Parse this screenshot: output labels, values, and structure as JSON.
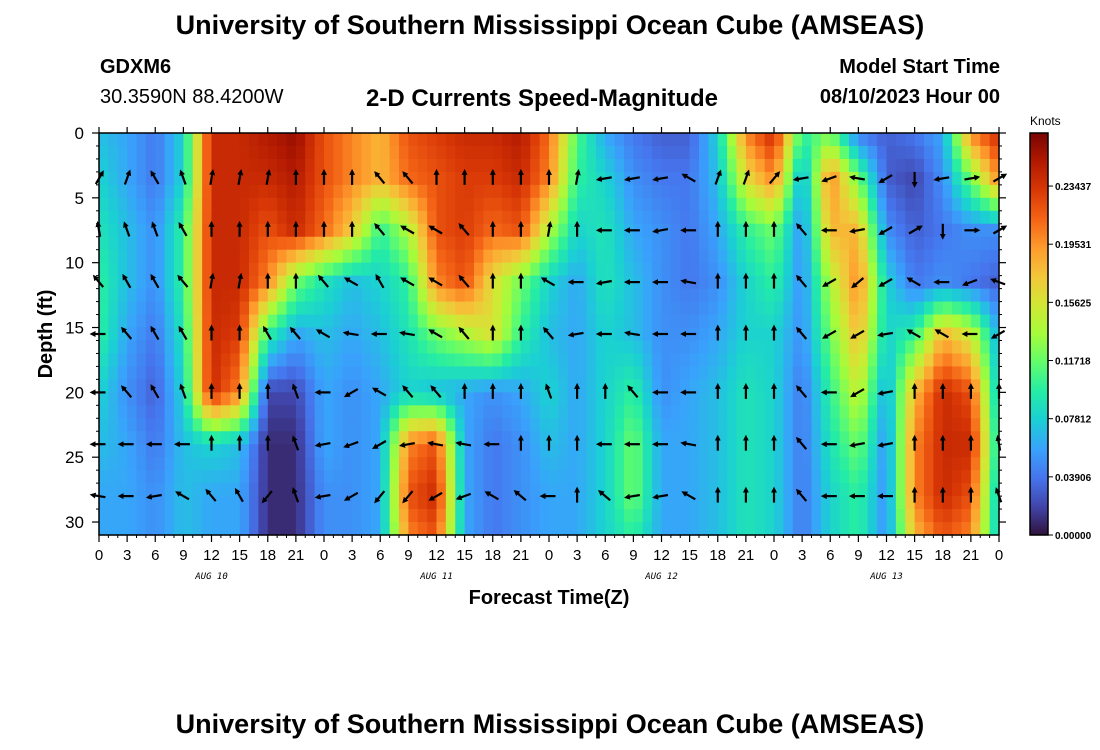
{
  "header": {
    "title": "University of Southern Mississippi Ocean Cube (AMSEAS)",
    "station": "GDXM6",
    "coords": "30.3590N  88.4200W",
    "subtitle": "2-D Currents Speed-Magnitude",
    "start_label": "Model Start Time",
    "start_value": "08/10/2023 Hour 00"
  },
  "footer": {
    "title": "University of Southern Mississippi Ocean Cube (AMSEAS)"
  },
  "chart_data": {
    "type": "heatmap",
    "title": "2-D Currents Speed-Magnitude",
    "xlabel": "Forecast Time(Z)",
    "ylabel": "Depth (ft)",
    "xlim": [
      0,
      96
    ],
    "ylim": [
      31,
      0
    ],
    "x_ticks": [
      0,
      3,
      6,
      9,
      12,
      15,
      18,
      21,
      24,
      27,
      30,
      33,
      36,
      39,
      42,
      45,
      48,
      51,
      54,
      57,
      60,
      63,
      66,
      69,
      72,
      75,
      78,
      81,
      84,
      87,
      90,
      93,
      96
    ],
    "x_tick_labels": [
      "0",
      "3",
      "6",
      "9",
      "12",
      "15",
      "18",
      "21",
      "0",
      "3",
      "6",
      "9",
      "12",
      "15",
      "18",
      "21",
      "0",
      "3",
      "6",
      "9",
      "12",
      "15",
      "18",
      "21",
      "0",
      "3",
      "6",
      "9",
      "12",
      "15",
      "18",
      "21",
      "0"
    ],
    "y_ticks": [
      0,
      5,
      10,
      15,
      20,
      25,
      30
    ],
    "y_tick_labels": [
      "0",
      "5",
      "10",
      "15",
      "20",
      "25",
      "30"
    ],
    "date_labels": [
      {
        "x": 12,
        "label": "AUG 10"
      },
      {
        "x": 36,
        "label": "AUG 11"
      },
      {
        "x": 60,
        "label": "AUG 12"
      },
      {
        "x": 84,
        "label": "AUG 13"
      }
    ],
    "colorbar": {
      "label": "Knots",
      "range": [
        0.0,
        0.27
      ],
      "ticks": [
        0.23437,
        0.19531,
        0.15625,
        0.11718,
        0.07812,
        0.03906,
        0.0
      ],
      "tick_labels": [
        "0.23437",
        "0.19531",
        "0.15625",
        "0.11718",
        "0.07812",
        "0.03906",
        "0.00000"
      ],
      "colors": [
        "#30123b",
        "#4145ab",
        "#4675ed",
        "#39a2fc",
        "#1bcfd4",
        "#24eca6",
        "#61fc6c",
        "#a4fc3b",
        "#d1e834",
        "#f3c63a",
        "#fe9b2d",
        "#f36315",
        "#d93806",
        "#b11901",
        "#7a0402"
      ]
    },
    "speed_grid": {
      "x": [
        0,
        3,
        6,
        9,
        12,
        15,
        18,
        21,
        24,
        27,
        30,
        33,
        36,
        39,
        42,
        45,
        48,
        51,
        54,
        57,
        60,
        63,
        66,
        69,
        72,
        75,
        78,
        81,
        84,
        87,
        90,
        93,
        96
      ],
      "depth": [
        0,
        3.5,
        7.5,
        11.5,
        15.5,
        20,
        24,
        28,
        31
      ],
      "values": [
        [
          0.07,
          0.06,
          0.04,
          0.08,
          0.24,
          0.24,
          0.25,
          0.26,
          0.22,
          0.2,
          0.18,
          0.22,
          0.23,
          0.24,
          0.24,
          0.25,
          0.21,
          0.11,
          0.06,
          0.04,
          0.03,
          0.03,
          0.08,
          0.2,
          0.24,
          0.1,
          0.12,
          0.04,
          0.03,
          0.04,
          0.06,
          0.2,
          0.24
        ],
        [
          0.08,
          0.06,
          0.04,
          0.08,
          0.24,
          0.24,
          0.24,
          0.25,
          0.22,
          0.2,
          0.18,
          0.21,
          0.22,
          0.23,
          0.23,
          0.24,
          0.2,
          0.1,
          0.08,
          0.05,
          0.04,
          0.04,
          0.07,
          0.16,
          0.2,
          0.06,
          0.2,
          0.12,
          0.03,
          0.02,
          0.05,
          0.12,
          0.2
        ],
        [
          0.09,
          0.07,
          0.05,
          0.1,
          0.24,
          0.24,
          0.22,
          0.24,
          0.21,
          0.17,
          0.1,
          0.14,
          0.22,
          0.23,
          0.21,
          0.22,
          0.14,
          0.08,
          0.09,
          0.06,
          0.05,
          0.04,
          0.06,
          0.1,
          0.12,
          0.05,
          0.18,
          0.18,
          0.05,
          0.03,
          0.04,
          0.05,
          0.05
        ],
        [
          0.1,
          0.07,
          0.05,
          0.1,
          0.24,
          0.24,
          0.2,
          0.12,
          0.09,
          0.07,
          0.08,
          0.1,
          0.2,
          0.22,
          0.16,
          0.12,
          0.08,
          0.06,
          0.09,
          0.07,
          0.05,
          0.04,
          0.05,
          0.08,
          0.1,
          0.05,
          0.14,
          0.2,
          0.08,
          0.04,
          0.05,
          0.04,
          0.03
        ],
        [
          0.1,
          0.06,
          0.04,
          0.09,
          0.24,
          0.23,
          0.1,
          0.06,
          0.07,
          0.06,
          0.07,
          0.09,
          0.12,
          0.14,
          0.16,
          0.1,
          0.07,
          0.06,
          0.08,
          0.07,
          0.05,
          0.05,
          0.06,
          0.08,
          0.08,
          0.05,
          0.12,
          0.18,
          0.08,
          0.1,
          0.18,
          0.15,
          0.06
        ],
        [
          0.08,
          0.05,
          0.03,
          0.08,
          0.24,
          0.2,
          0.02,
          0.02,
          0.06,
          0.05,
          0.06,
          0.08,
          0.07,
          0.06,
          0.05,
          0.06,
          0.08,
          0.06,
          0.08,
          0.1,
          0.05,
          0.06,
          0.07,
          0.09,
          0.08,
          0.04,
          0.1,
          0.15,
          0.06,
          0.18,
          0.24,
          0.22,
          0.07
        ],
        [
          0.07,
          0.06,
          0.04,
          0.07,
          0.08,
          0.07,
          0.01,
          0.01,
          0.06,
          0.05,
          0.06,
          0.2,
          0.22,
          0.06,
          0.04,
          0.05,
          0.07,
          0.06,
          0.08,
          0.12,
          0.06,
          0.06,
          0.07,
          0.09,
          0.08,
          0.04,
          0.09,
          0.12,
          0.05,
          0.2,
          0.24,
          0.24,
          0.08
        ],
        [
          0.06,
          0.06,
          0.05,
          0.07,
          0.06,
          0.06,
          0.01,
          0.01,
          0.05,
          0.05,
          0.06,
          0.22,
          0.24,
          0.06,
          0.04,
          0.05,
          0.06,
          0.06,
          0.08,
          0.12,
          0.06,
          0.06,
          0.07,
          0.09,
          0.08,
          0.04,
          0.08,
          0.1,
          0.05,
          0.2,
          0.24,
          0.22,
          0.07
        ],
        [
          0.06,
          0.06,
          0.05,
          0.07,
          0.06,
          0.06,
          0.01,
          0.01,
          0.05,
          0.05,
          0.06,
          0.2,
          0.22,
          0.06,
          0.04,
          0.05,
          0.06,
          0.06,
          0.08,
          0.1,
          0.06,
          0.06,
          0.07,
          0.09,
          0.08,
          0.04,
          0.08,
          0.1,
          0.05,
          0.18,
          0.22,
          0.2,
          0.07
        ]
      ]
    },
    "vectors": {
      "x": [
        0,
        3,
        6,
        9,
        12,
        15,
        18,
        21,
        24,
        27,
        30,
        33,
        36,
        39,
        42,
        45,
        48,
        51,
        54,
        57,
        60,
        63,
        66,
        69,
        72,
        75,
        78,
        81,
        84,
        87,
        90,
        93,
        96
      ],
      "depth": [
        3.5,
        7.5,
        11.5,
        15.5,
        20,
        24,
        28
      ],
      "direction_deg": [
        [
          30,
          20,
          -30,
          -20,
          10,
          10,
          10,
          0,
          0,
          0,
          -40,
          -40,
          0,
          0,
          0,
          0,
          0,
          10,
          -100,
          -100,
          -100,
          -60,
          20,
          20,
          40,
          -100,
          -110,
          -80,
          -120,
          180,
          -100,
          80,
          60
        ],
        [
          -10,
          -20,
          -20,
          -30,
          0,
          0,
          0,
          0,
          0,
          0,
          -40,
          -60,
          -60,
          -40,
          0,
          0,
          10,
          0,
          -90,
          -90,
          -100,
          -90,
          0,
          0,
          0,
          -40,
          -90,
          -100,
          -120,
          60,
          180,
          90,
          60
        ],
        [
          -40,
          -30,
          -30,
          -40,
          10,
          10,
          0,
          0,
          -40,
          -60,
          -30,
          -60,
          -60,
          -40,
          0,
          0,
          -60,
          -90,
          -100,
          -90,
          -90,
          -80,
          0,
          0,
          0,
          -40,
          -120,
          -130,
          -120,
          -60,
          -90,
          -110,
          -70
        ],
        [
          -90,
          -40,
          -30,
          -30,
          0,
          0,
          -30,
          -40,
          -60,
          -80,
          -90,
          -80,
          -60,
          -40,
          0,
          0,
          -40,
          -100,
          -90,
          -80,
          -90,
          -90,
          0,
          0,
          0,
          -40,
          -120,
          -120,
          -100,
          -60,
          -60,
          -90,
          -120
        ],
        [
          -90,
          -40,
          -30,
          -20,
          0,
          0,
          0,
          -20,
          -90,
          -120,
          -60,
          -40,
          -40,
          0,
          0,
          0,
          -20,
          0,
          0,
          -40,
          -90,
          -90,
          0,
          0,
          0,
          -40,
          -90,
          -120,
          -100,
          0,
          0,
          0,
          0
        ],
        [
          -90,
          -90,
          -90,
          -90,
          0,
          0,
          0,
          -20,
          -100,
          -110,
          -120,
          -100,
          -80,
          -80,
          -90,
          0,
          0,
          0,
          -90,
          -90,
          -90,
          -80,
          0,
          0,
          0,
          -40,
          -90,
          -100,
          -100,
          0,
          0,
          0,
          -10
        ],
        [
          -80,
          -90,
          -100,
          -60,
          -40,
          -30,
          -140,
          -20,
          -100,
          -120,
          -140,
          -140,
          -120,
          -110,
          -60,
          -50,
          -90,
          0,
          -50,
          -100,
          -100,
          -60,
          0,
          0,
          0,
          -40,
          -90,
          -90,
          -90,
          0,
          0,
          0,
          -20
        ]
      ]
    }
  }
}
